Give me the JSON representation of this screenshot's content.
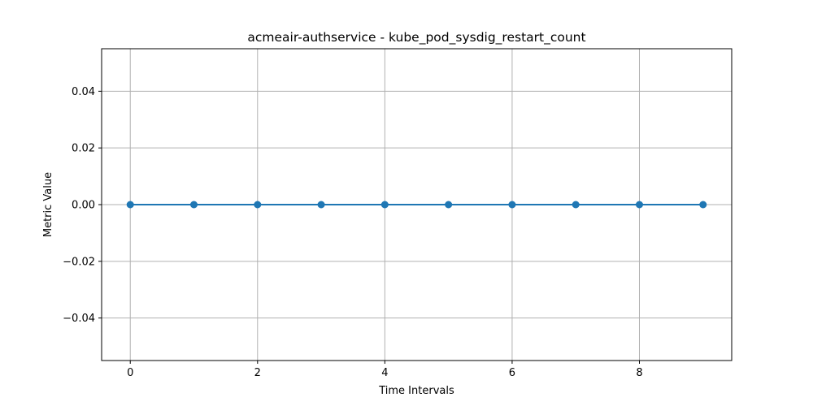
{
  "chart_data": {
    "type": "line",
    "title": "acmeair-authservice - kube_pod_sysdig_restart_count",
    "xlabel": "Time Intervals",
    "ylabel": "Metric Value",
    "x": [
      0,
      1,
      2,
      3,
      4,
      5,
      6,
      7,
      8,
      9
    ],
    "series": [
      {
        "values": [
          0,
          0,
          0,
          0,
          0,
          0,
          0,
          0,
          0,
          0
        ],
        "color": "#1f77b4",
        "marker": "circle"
      }
    ],
    "xlim": [
      -0.45,
      9.45
    ],
    "ylim": [
      -0.055,
      0.055
    ],
    "xticks": [
      0,
      2,
      4,
      6,
      8
    ],
    "xtick_labels": [
      "0",
      "2",
      "4",
      "6",
      "8"
    ],
    "yticks": [
      0.04,
      0.02,
      0.0,
      -0.02,
      -0.04
    ],
    "ytick_labels": [
      "0.04",
      "0.02",
      "0.00",
      "−0.02",
      "−0.04"
    ],
    "grid": true,
    "grid_color": "#b0b0b0"
  }
}
